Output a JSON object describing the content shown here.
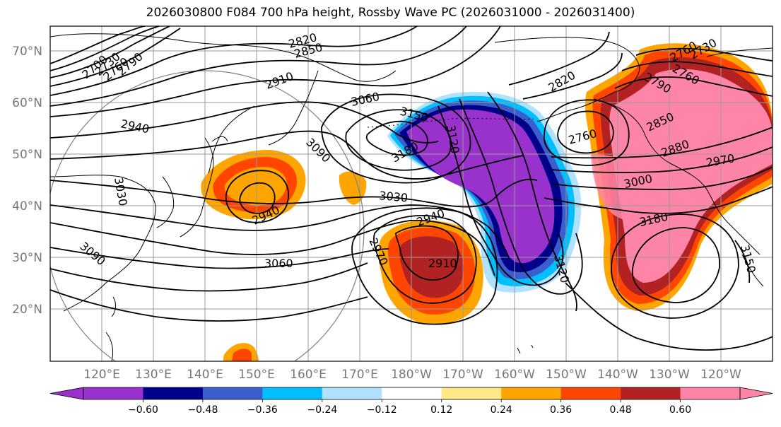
{
  "title": "2026030800 F084 700 hPa height, Rossby Wave PC (2026031000 - 2026031400)",
  "lat_labels": [
    "70°N",
    "60°N",
    "50°N",
    "40°N",
    "30°N",
    "20°N"
  ],
  "lon_labels": [
    "120°E",
    "130°E",
    "140°E",
    "150°E",
    "160°E",
    "170°E",
    "180°W",
    "170°W",
    "160°W",
    "150°W",
    "140°W",
    "130°W",
    "120°W"
  ],
  "contour_labels": [
    "2700",
    "2730",
    "2760",
    "2790",
    "2820",
    "2850",
    "2910",
    "2940",
    "3060",
    "3150",
    "3180",
    "3120",
    "3090",
    "3030",
    "3030",
    "3060",
    "3090",
    "2940",
    "2970",
    "2910",
    "2940",
    "2820",
    "2760",
    "2880",
    "2970",
    "3000",
    "3180",
    "3120",
    "2760",
    "2790",
    "2760",
    "2730",
    "3150",
    "2850"
  ],
  "colorbar": {
    "ticks": [
      "−0.60",
      "−0.48",
      "−0.36",
      "−0.24",
      "−0.12",
      "0.12",
      "0.24",
      "0.36",
      "0.48",
      "0.60"
    ],
    "colors": [
      "#9932cc",
      "#00008b",
      "#3a5fcd",
      "#00bfff",
      "#b0e2ff",
      "#ffffff",
      "#ffe888",
      "#ffa500",
      "#ff4500",
      "#b22222",
      "#ff85a8"
    ]
  }
}
